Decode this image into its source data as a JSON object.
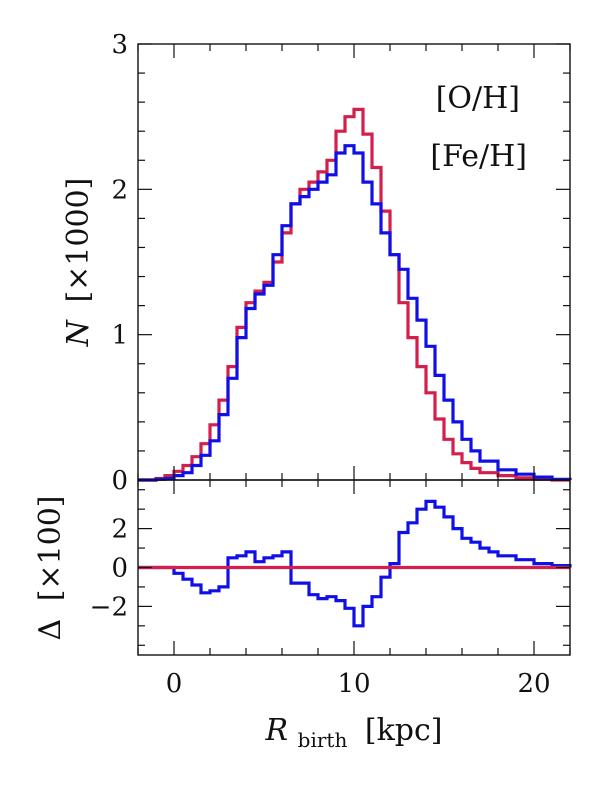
{
  "chart_data": [
    {
      "type": "line",
      "step": true,
      "xlabel_main": "R",
      "xlabel_sub": "birth",
      "xlabel_unit": "[kpc]",
      "ylabel_main": "N",
      "ylabel_unit": "[×1000]",
      "xlim": [
        -2,
        22
      ],
      "ylim": [
        0,
        3
      ],
      "xticks": [
        "0",
        "10",
        "20"
      ],
      "xtick_values": [
        0,
        10,
        20
      ],
      "yticks": [
        "0",
        "1",
        "2",
        "3"
      ],
      "ytick_values": [
        0,
        1,
        2,
        3
      ],
      "legend_position": "top-right",
      "series": [
        {
          "name": "[O/H]",
          "color": "#d21f4b",
          "x": [
            -2,
            -1,
            -0.5,
            0,
            0.5,
            1,
            1.5,
            2,
            2.5,
            3,
            3.5,
            4,
            4.5,
            5,
            5.5,
            6,
            6.5,
            7,
            7.5,
            8,
            8.5,
            9,
            9.5,
            10,
            10.5,
            11,
            11.5,
            12,
            12.5,
            13,
            13.5,
            14,
            14.5,
            15,
            15.5,
            16,
            16.5,
            17,
            18,
            19,
            20,
            21,
            22
          ],
          "values": [
            0,
            0.01,
            0.03,
            0.06,
            0.1,
            0.16,
            0.25,
            0.38,
            0.55,
            0.78,
            1.05,
            1.22,
            1.3,
            1.36,
            1.5,
            1.7,
            1.9,
            2.0,
            2.05,
            2.12,
            2.2,
            2.4,
            2.5,
            2.55,
            2.38,
            2.15,
            1.85,
            1.55,
            1.22,
            0.98,
            0.78,
            0.6,
            0.42,
            0.28,
            0.18,
            0.12,
            0.08,
            0.05,
            0.03,
            0.015,
            0.005,
            0.0,
            0.0
          ]
        },
        {
          "name": "[Fe/H]",
          "color": "#1010e6",
          "x": [
            -2,
            -1,
            -0.5,
            0,
            0.5,
            1,
            1.5,
            2,
            2.5,
            3,
            3.5,
            4,
            4.5,
            5,
            5.5,
            6,
            6.5,
            7,
            7.5,
            8,
            8.5,
            9,
            9.5,
            10,
            10.5,
            11,
            11.5,
            12,
            12.5,
            13,
            13.5,
            14,
            14.5,
            15,
            15.5,
            16,
            16.5,
            17,
            18,
            19,
            20,
            21,
            22
          ],
          "values": [
            0,
            0.005,
            0.01,
            0.03,
            0.05,
            0.1,
            0.17,
            0.27,
            0.45,
            0.7,
            0.98,
            1.18,
            1.28,
            1.34,
            1.55,
            1.75,
            1.9,
            1.95,
            2.0,
            2.05,
            2.1,
            2.25,
            2.3,
            2.25,
            2.05,
            1.9,
            1.7,
            1.55,
            1.45,
            1.25,
            1.1,
            0.92,
            0.72,
            0.55,
            0.4,
            0.28,
            0.2,
            0.13,
            0.07,
            0.04,
            0.02,
            0.005,
            0.0
          ]
        }
      ]
    },
    {
      "type": "line",
      "step": true,
      "ylabel_main": "Δ",
      "ylabel_unit": "[×100]",
      "xlim": [
        -2,
        22
      ],
      "ylim": [
        -4.5,
        4.5
      ],
      "yticks": [
        "−2",
        "0",
        "2"
      ],
      "ytick_values": [
        -2,
        0,
        2
      ],
      "series": [
        {
          "color": "#1010e6",
          "x": [
            -2,
            -0.5,
            0,
            0.5,
            1,
            1.5,
            2,
            2.5,
            3,
            3.5,
            4,
            4.5,
            5,
            5.5,
            6,
            6.5,
            7,
            7.5,
            8,
            8.5,
            9,
            9.5,
            10,
            10.5,
            11,
            11.5,
            12,
            12.5,
            13,
            13.5,
            14,
            14.5,
            15,
            15.5,
            16,
            16.5,
            17,
            17.5,
            18,
            19,
            20,
            21,
            22
          ],
          "values": [
            0,
            0,
            -0.3,
            -0.6,
            -0.9,
            -1.3,
            -1.2,
            -1.0,
            0.5,
            0.6,
            0.8,
            0.3,
            0.5,
            0.6,
            0.8,
            -0.8,
            -0.8,
            -1.4,
            -1.6,
            -1.5,
            -1.7,
            -2.1,
            -3.0,
            -2.0,
            -1.5,
            -0.5,
            0.2,
            1.8,
            2.3,
            3.0,
            3.4,
            3.1,
            2.6,
            2.0,
            1.5,
            1.3,
            1.0,
            0.8,
            0.6,
            0.4,
            0.2,
            0.1,
            0.0
          ]
        },
        {
          "color": "#d21f4b",
          "x": [
            -2,
            22
          ],
          "values": [
            0,
            0
          ]
        }
      ]
    }
  ]
}
